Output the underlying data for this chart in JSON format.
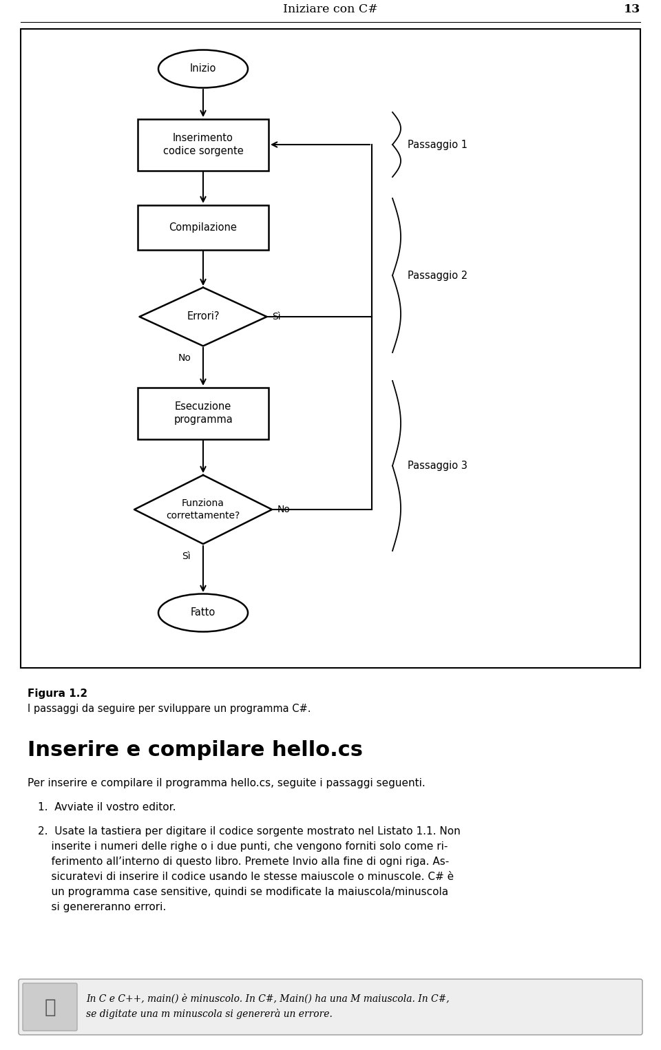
{
  "page_header": "Iniziare con C#",
  "page_number": "13",
  "fig_caption_bold": "Figura 1.2",
  "fig_caption_normal": "I passaggi da seguire per sviluppare un programma C#.",
  "section_title": "Inserire e compilare hello.cs",
  "para1": "Per inserire e compilare il programma hello.cs, seguite i passaggi seguenti.",
  "item1": "1.  Avviate il vostro editor.",
  "item2_line1": "2.  Usate la tastiera per digitare il codice sorgente mostrato nel Listato 1.1. Non",
  "item2_line2": "    inserite i numeri delle righe o i due punti, che vengono forniti solo come ri-",
  "item2_line3": "    ferimento all’interno di questo libro. Premete Invio alla fine di ogni riga. As-",
  "item2_line4": "    sicuratevi di inserire il codice usando le stesse maiuscole o minuscole. C# è",
  "item2_line5": "    un programma case sensitive, quindi se modificate la maiuscola/minuscola",
  "item2_line6": "    si genereranno errori.",
  "note_line1": "In C e C++, main() è minuscolo. In C#, Main() ha una M maiuscola. In C#,",
  "note_line2": "se digitate una m minuscola si genererà un errore.",
  "background_color": "#ffffff",
  "node_inizio": "Inizio",
  "node_inserimento": "Inserimento\ncodice sorgente",
  "node_compilazione": "Compilazione",
  "node_errori": "Errori?",
  "node_esecuzione": "Esecuzione\nprogramma",
  "node_funziona": "Funziona\ncorrettamente?",
  "node_fatto": "Fatto",
  "label_si1": "Sì",
  "label_no1": "No",
  "label_si2": "Sì",
  "label_no2": "No",
  "brace1": "Passaggio 1",
  "brace2": "Passaggio 2",
  "brace3": "Passaggio 3"
}
